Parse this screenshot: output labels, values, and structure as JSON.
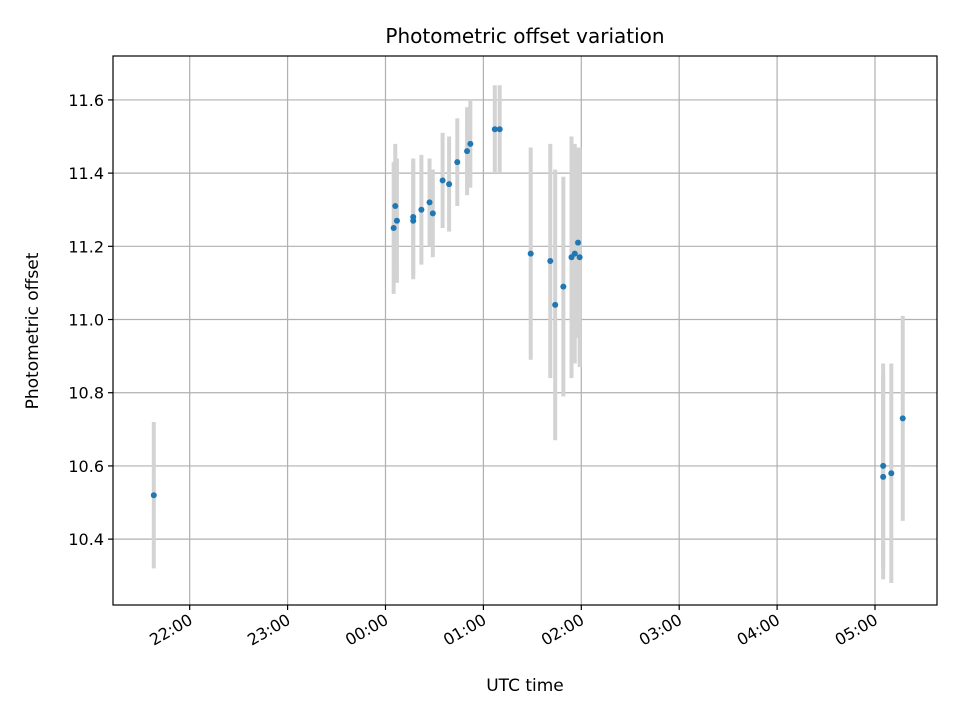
{
  "chart_data": {
    "type": "scatter",
    "title": "Photometric offset variation",
    "xlabel": "UTC time",
    "ylabel": "Photometric offset",
    "x_unit": "time-of-day (HH:MM)",
    "xlim": [
      "21:13",
      "05:38"
    ],
    "ylim": [
      10.22,
      11.72
    ],
    "grid": true,
    "legend": "none",
    "colors": {
      "point": "#1f77b4",
      "errorbar": "#d3d3d3",
      "grid": "#b0b0b0"
    },
    "xticks": [
      "22:00",
      "23:00",
      "00:00",
      "01:00",
      "02:00",
      "03:00",
      "04:00",
      "05:00"
    ],
    "yticks": [
      "10.4",
      "10.6",
      "10.8",
      "11.0",
      "11.2",
      "11.4",
      "11.6"
    ],
    "points": [
      {
        "x": "21:38",
        "y": 10.52,
        "yerr": 0.2
      },
      {
        "x": "00:05",
        "y": 11.25,
        "yerr": 0.18
      },
      {
        "x": "00:06",
        "y": 11.31,
        "yerr": 0.17
      },
      {
        "x": "00:07",
        "y": 11.27,
        "yerr": 0.17
      },
      {
        "x": "00:17",
        "y": 11.28,
        "yerr": 0.16
      },
      {
        "x": "00:17",
        "y": 11.27,
        "yerr": 0.16
      },
      {
        "x": "00:22",
        "y": 11.3,
        "yerr": 0.15
      },
      {
        "x": "00:27",
        "y": 11.32,
        "yerr": 0.12
      },
      {
        "x": "00:29",
        "y": 11.29,
        "yerr": 0.12
      },
      {
        "x": "00:35",
        "y": 11.38,
        "yerr": 0.13
      },
      {
        "x": "00:39",
        "y": 11.37,
        "yerr": 0.13
      },
      {
        "x": "00:44",
        "y": 11.43,
        "yerr": 0.12
      },
      {
        "x": "00:50",
        "y": 11.46,
        "yerr": 0.12
      },
      {
        "x": "00:52",
        "y": 11.48,
        "yerr": 0.12
      },
      {
        "x": "01:07",
        "y": 11.52,
        "yerr": 0.12
      },
      {
        "x": "01:10",
        "y": 11.52,
        "yerr": 0.12
      },
      {
        "x": "01:29",
        "y": 11.18,
        "yerr": 0.29
      },
      {
        "x": "01:41",
        "y": 11.16,
        "yerr": 0.32
      },
      {
        "x": "01:44",
        "y": 11.04,
        "yerr": 0.37
      },
      {
        "x": "01:49",
        "y": 11.09,
        "yerr": 0.3
      },
      {
        "x": "01:54",
        "y": 11.17,
        "yerr": 0.33
      },
      {
        "x": "01:56",
        "y": 11.18,
        "yerr": 0.3
      },
      {
        "x": "01:58",
        "y": 11.21,
        "yerr": 0.26
      },
      {
        "x": "01:59",
        "y": 11.17,
        "yerr": 0.3
      },
      {
        "x": "05:05",
        "y": 10.6,
        "yerr": 0.28
      },
      {
        "x": "05:05",
        "y": 10.57,
        "yerr": 0.28
      },
      {
        "x": "05:10",
        "y": 10.58,
        "yerr": 0.3
      },
      {
        "x": "05:17",
        "y": 10.73,
        "yerr": 0.28
      }
    ]
  }
}
